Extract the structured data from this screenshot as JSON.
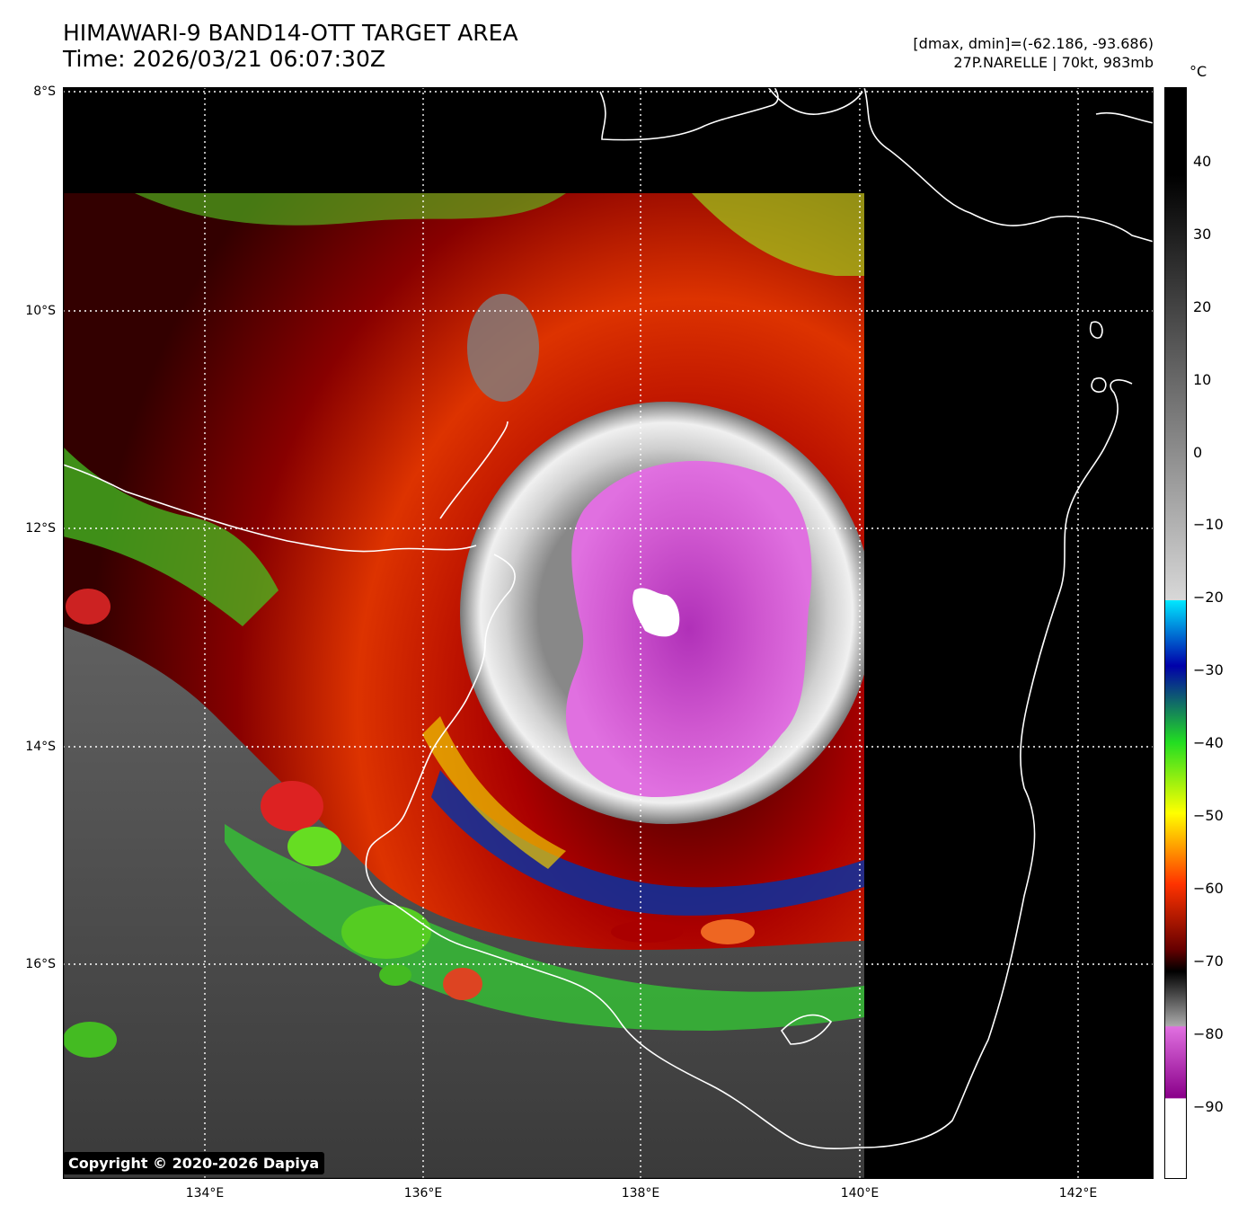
{
  "header": {
    "title_line1": "HIMAWARI-9 BAND14-OTT TARGET AREA",
    "title_line2": "Time: 2026/03/21 06:07:30Z",
    "dmax_dmin": "[dmax, dmin]=(-62.186, -93.686)",
    "storm_info": "27P.NARELLE | 70kt, 983mb"
  },
  "map": {
    "lat_labels": [
      "8°S",
      "10°S",
      "12°S",
      "14°S",
      "16°S"
    ],
    "lon_labels": [
      "134°E",
      "136°E",
      "138°E",
      "140°E",
      "142°E"
    ]
  },
  "colorbar": {
    "unit": "°C",
    "tick_labels": [
      "40",
      "30",
      "20",
      "10",
      "0",
      "−10",
      "−20",
      "−30",
      "−40",
      "−50",
      "−60",
      "−70",
      "−80",
      "−90"
    ]
  },
  "copyright": "Copyright © 2020-2026 Dapiya",
  "colors": {
    "purple_core": "#d65ad6",
    "eye": "#ffffff",
    "red_band": "#cc0000",
    "green_band": "#44dd22",
    "cyan": "#00e8ff",
    "background_space": "#000000"
  }
}
